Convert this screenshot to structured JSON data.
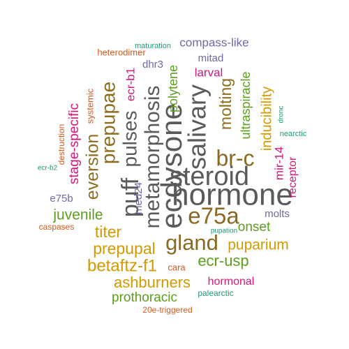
{
  "colors": {
    "dark_gray": "#5a5a5a",
    "brown": "#8c6d1f",
    "olive": "#8a6a20",
    "orange_brown": "#c46f12",
    "gold": "#d19a00",
    "green": "#5c9e1e",
    "teal": "#1d9a78",
    "magenta": "#d6157a",
    "purple": "#6f68a8",
    "red_orange": "#d4591b",
    "red": "#c0145c"
  },
  "words": [
    {
      "text": "hormone",
      "color": "dark_gray"
    },
    {
      "text": "steroid",
      "color": "dark_gray"
    },
    {
      "text": "ecdysone",
      "color": "dark_gray"
    },
    {
      "text": "metamorphosis",
      "color": "dark_gray"
    },
    {
      "text": "salivary",
      "color": "dark_gray"
    },
    {
      "text": "gland",
      "color": "olive"
    },
    {
      "text": "e75a",
      "color": "olive"
    },
    {
      "text": "br-c",
      "color": "olive"
    },
    {
      "text": "puff",
      "color": "dark_gray"
    },
    {
      "text": "pulses",
      "color": "dark_gray"
    },
    {
      "text": "prepupae",
      "color": "brown"
    },
    {
      "text": "eversion",
      "color": "brown"
    },
    {
      "text": "molting",
      "color": "brown"
    },
    {
      "text": "betaftz-f1",
      "color": "gold"
    },
    {
      "text": "ashburners",
      "color": "gold"
    },
    {
      "text": "prepupal",
      "color": "gold"
    },
    {
      "text": "puparium",
      "color": "gold"
    },
    {
      "text": "titer",
      "color": "gold"
    },
    {
      "text": "inducibility",
      "color": "gold"
    },
    {
      "text": "ecr-usp",
      "color": "green"
    },
    {
      "text": "onset",
      "color": "green"
    },
    {
      "text": "juvenile",
      "color": "green"
    },
    {
      "text": "prothoracic",
      "color": "green"
    },
    {
      "text": "ultraspiracle",
      "color": "green"
    },
    {
      "text": "polytene",
      "color": "green"
    },
    {
      "text": "compass-like",
      "color": "purple"
    },
    {
      "text": "mitad",
      "color": "purple"
    },
    {
      "text": "dhr3",
      "color": "purple"
    },
    {
      "text": "med24",
      "color": "purple"
    },
    {
      "text": "e75b",
      "color": "purple"
    },
    {
      "text": "molts",
      "color": "purple"
    },
    {
      "text": "ecr-b1",
      "color": "magenta"
    },
    {
      "text": "stage-specific",
      "color": "magenta"
    },
    {
      "text": "larval",
      "color": "magenta"
    },
    {
      "text": "receptor",
      "color": "magenta"
    },
    {
      "text": "mir-14",
      "color": "magenta"
    },
    {
      "text": "hormonal",
      "color": "magenta"
    },
    {
      "text": "cara",
      "color": "red_orange"
    },
    {
      "text": "systemic",
      "color": "red_orange"
    },
    {
      "text": "destruction",
      "color": "red_orange"
    },
    {
      "text": "heterodimer",
      "color": "red_orange"
    },
    {
      "text": "caspases",
      "color": "red_orange"
    },
    {
      "text": "20e-triggered",
      "color": "red_orange"
    },
    {
      "text": "maturation",
      "color": "teal"
    },
    {
      "text": "dronc",
      "color": "teal"
    },
    {
      "text": "nearctic",
      "color": "teal"
    },
    {
      "text": "ecr-b2",
      "color": "teal"
    },
    {
      "text": "pupation",
      "color": "teal"
    },
    {
      "text": "palearctic",
      "color": "teal"
    }
  ]
}
